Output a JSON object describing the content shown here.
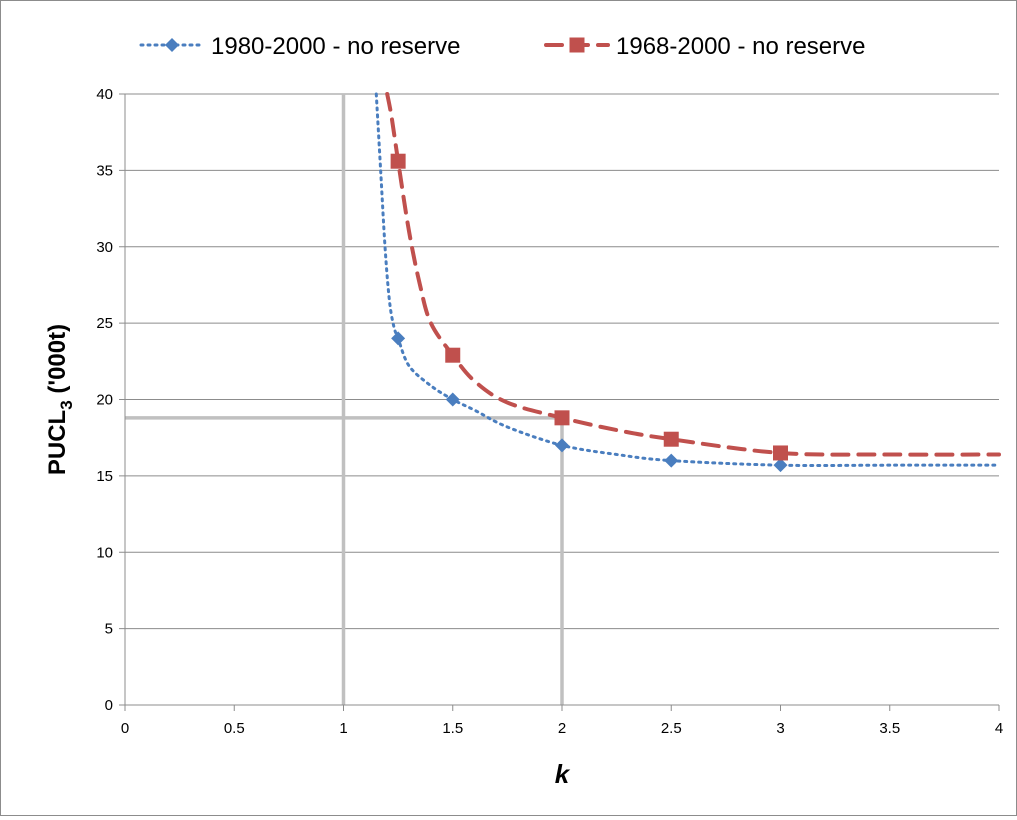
{
  "chart_data": {
    "type": "scatter",
    "xlabel": "k",
    "ylabel": {
      "main": "PUCL",
      "subscript": "3",
      "suffix": " ('000t)"
    },
    "xlim": [
      0,
      4
    ],
    "ylim": [
      0,
      40
    ],
    "xticks": [
      "0",
      "0.5",
      "1",
      "1.5",
      "2",
      "2.5",
      "3",
      "3.5",
      "4"
    ],
    "yticks": [
      "0",
      "5",
      "10",
      "15",
      "20",
      "25",
      "30",
      "35",
      "40"
    ],
    "grid": "horizontal",
    "legend_position": "top",
    "series": [
      {
        "name": "1980-2000 - no reserve",
        "color": "#4a7ebf",
        "marker": "diamond",
        "line_style": "dotted",
        "x": [
          1.25,
          1.5,
          2,
          2.5,
          3
        ],
        "y": [
          24,
          20,
          17,
          16,
          15.7
        ],
        "curve_x": [
          1.15,
          1.17,
          1.19,
          1.21,
          1.23,
          1.25,
          1.3,
          1.4,
          1.5,
          1.6,
          1.75,
          2,
          2.25,
          2.5,
          3,
          3.5,
          4
        ],
        "curve_y": [
          40,
          35,
          30,
          26.5,
          24.8,
          24,
          22.2,
          20.9,
          20,
          19.3,
          18.2,
          17,
          16.4,
          16,
          15.7,
          15.7,
          15.7
        ]
      },
      {
        "name": "1968-2000 - no reserve",
        "color": "#c0504d",
        "marker": "square",
        "line_style": "dashed",
        "x": [
          1.25,
          1.5,
          2,
          2.5,
          3
        ],
        "y": [
          35.6,
          22.9,
          18.8,
          17.4,
          16.5
        ],
        "curve_x": [
          1.2,
          1.22,
          1.25,
          1.3,
          1.35,
          1.4,
          1.5,
          1.6,
          1.75,
          2,
          2.25,
          2.5,
          3,
          3.5,
          4
        ],
        "curve_y": [
          40,
          38.5,
          35.6,
          31,
          27.5,
          25,
          22.9,
          21.2,
          19.8,
          18.8,
          18,
          17.4,
          16.5,
          16.4,
          16.4
        ]
      }
    ],
    "reference_lines": [
      {
        "axis": "x",
        "value": 1,
        "from": 0,
        "to": 40
      },
      {
        "axis": "x",
        "value": 2,
        "from": 0,
        "to": 18.8
      },
      {
        "axis": "y",
        "value": 18.8,
        "from": 0,
        "to": 2
      }
    ]
  }
}
